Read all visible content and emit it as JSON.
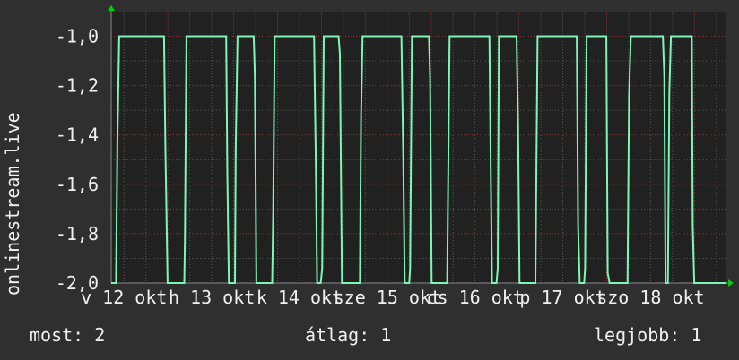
{
  "chart_data": {
    "type": "line",
    "title": "",
    "ylabel": "onlinestream.live",
    "xlabel": "",
    "ylim": [
      -2.0,
      -0.9
    ],
    "xlim": [
      "10-12 08:30",
      "10-19 08:30"
    ],
    "yticks": [
      {
        "value": -1.0,
        "label": "-1,0"
      },
      {
        "value": -1.2,
        "label": "-1,2"
      },
      {
        "value": -1.4,
        "label": "-1,4"
      },
      {
        "value": -1.6,
        "label": "-1,6"
      },
      {
        "value": -1.8,
        "label": "-1,8"
      },
      {
        "value": -2.0,
        "label": "-2,0"
      }
    ],
    "xticks": [
      {
        "at": "10-12 12:00",
        "label": "v 12 okt"
      },
      {
        "at": "10-13 12:00",
        "label": "h 13 okt"
      },
      {
        "at": "10-14 12:00",
        "label": "k 14 okt"
      },
      {
        "at": "10-15 12:00",
        "label": "sze 15 okt"
      },
      {
        "at": "10-16 12:00",
        "label": "cs 16 okt"
      },
      {
        "at": "10-17 12:00",
        "label": "p 17 okt"
      },
      {
        "at": "10-18 12:00",
        "label": "szo 18 okt"
      }
    ],
    "grid": true,
    "colors": {
      "line": "#7ff5b4",
      "background": "#2f2f2f",
      "plot_background": "#212121",
      "major_grid": "#8a3a3a",
      "minor_grid": "#555555",
      "arrow": "#00d000"
    },
    "series": [
      {
        "points": [
          [
            "10-12 08:30",
            -2
          ],
          [
            "10-12 09:50",
            -2
          ],
          [
            "10-12 10:11",
            -1.43
          ],
          [
            "10-12 10:41",
            -1
          ],
          [
            "10-12 22:57",
            -1
          ],
          [
            "10-12 23:20",
            -1.47
          ],
          [
            "10-12 23:56",
            -2
          ],
          [
            "10-13 04:29",
            -2
          ],
          [
            "10-13 04:40",
            -1.83
          ],
          [
            "10-13 05:05",
            -1
          ],
          [
            "10-13 15:57",
            -1
          ],
          [
            "10-13 16:16",
            -1.56
          ],
          [
            "10-13 16:41",
            -2
          ],
          [
            "10-13 18:20",
            -2
          ],
          [
            "10-13 18:34",
            -1.44
          ],
          [
            "10-13 19:04",
            -1
          ],
          [
            "10-13 23:29",
            -1
          ],
          [
            "10-13 23:48",
            -1.16
          ],
          [
            "10-14 00:13",
            -2
          ],
          [
            "10-14 04:32",
            -2
          ],
          [
            "10-14 04:47",
            -1.73
          ],
          [
            "10-14 05:12",
            -1
          ],
          [
            "10-14 15:59",
            -1
          ],
          [
            "10-14 16:25",
            -1.47
          ],
          [
            "10-14 16:48",
            -2
          ],
          [
            "10-14 17:47",
            -2
          ],
          [
            "10-14 18:12",
            -1.94
          ],
          [
            "10-14 18:37",
            -1
          ],
          [
            "10-14 22:41",
            -1
          ],
          [
            "10-14 23:02",
            -1.07
          ],
          [
            "10-14 23:36",
            -2
          ],
          [
            "10-15 04:30",
            -2
          ],
          [
            "10-15 04:49",
            -1.33
          ],
          [
            "10-15 05:14",
            -1
          ],
          [
            "10-15 15:52",
            -1
          ],
          [
            "10-15 16:21",
            -1.47
          ],
          [
            "10-15 16:46",
            -2
          ],
          [
            "10-15 18:00",
            -2
          ],
          [
            "10-15 18:14",
            -1.94
          ],
          [
            "10-15 18:44",
            -1
          ],
          [
            "10-15 23:23",
            -1
          ],
          [
            "10-15 23:43",
            -1.17
          ],
          [
            "10-16 00:08",
            -2
          ],
          [
            "10-16 04:22",
            -2
          ],
          [
            "10-16 04:37",
            -1.63
          ],
          [
            "10-16 05:02",
            -1
          ],
          [
            "10-16 15:55",
            -1
          ],
          [
            "10-16 16:15",
            -1.47
          ],
          [
            "10-16 16:38",
            -2
          ],
          [
            "10-16 17:52",
            -2
          ],
          [
            "10-16 18:13",
            -1.94
          ],
          [
            "10-16 18:32",
            -1
          ],
          [
            "10-16 23:22",
            -1
          ],
          [
            "10-16 23:46",
            -1.37
          ],
          [
            "10-17 00:10",
            -2
          ],
          [
            "10-17 04:31",
            -2
          ],
          [
            "10-17 04:46",
            -1.54
          ],
          [
            "10-17 05:05",
            -1
          ],
          [
            "10-17 15:48",
            -1
          ],
          [
            "10-17 16:11",
            -1.77
          ],
          [
            "10-17 16:37",
            -2
          ],
          [
            "10-17 17:50",
            -2
          ],
          [
            "10-17 18:05",
            -1.94
          ],
          [
            "10-17 18:30",
            -1
          ],
          [
            "10-17 23:54",
            -1
          ],
          [
            "10-18 00:17",
            -1.96
          ],
          [
            "10-18 00:47",
            -2
          ],
          [
            "10-18 05:41",
            -2
          ],
          [
            "10-18 06:06",
            -1.24
          ],
          [
            "10-18 06:36",
            -1
          ],
          [
            "10-18 15:21",
            -1
          ],
          [
            "10-18 15:45",
            -1.16
          ],
          [
            "10-18 16:05",
            -2
          ],
          [
            "10-18 16:44",
            -2
          ],
          [
            "10-18 17:08",
            -1.23
          ],
          [
            "10-18 17:34",
            -1
          ],
          [
            "10-18 23:17",
            -1
          ],
          [
            "10-18 23:31",
            -1.77
          ],
          [
            "10-18 23:56",
            -2
          ],
          [
            "10-19 08:30",
            -2
          ]
        ]
      }
    ]
  },
  "legend": {
    "current": "most: 2",
    "average": "átlag: 1",
    "maximum": "legjobb: 1"
  }
}
